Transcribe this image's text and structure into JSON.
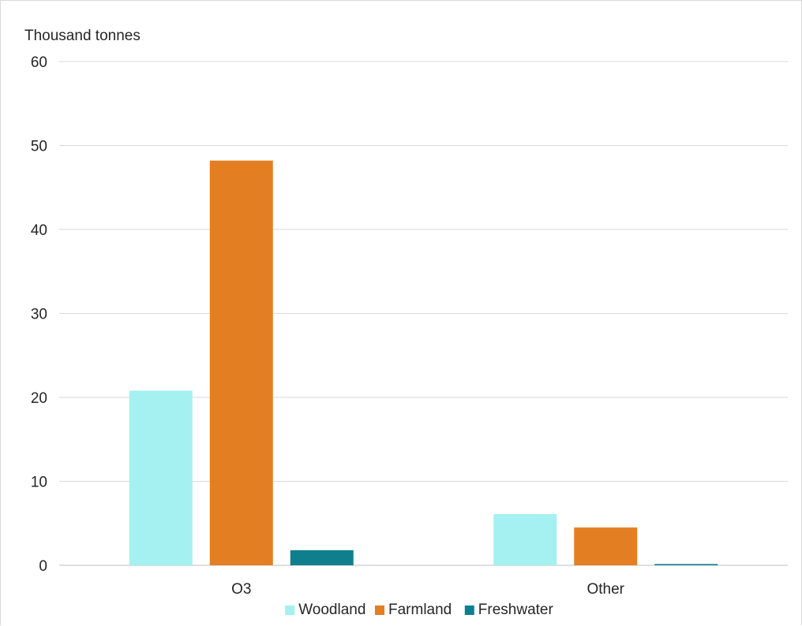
{
  "chart_data": {
    "type": "bar",
    "ylabel": "Thousand tonnes",
    "categories": [
      "O3",
      "Other"
    ],
    "series": [
      {
        "name": "Woodland",
        "values": [
          20.8,
          6.1
        ],
        "color": "#a5f0f0"
      },
      {
        "name": "Farmland",
        "values": [
          48.2,
          4.5
        ],
        "color": "#e37f22"
      },
      {
        "name": "Freshwater",
        "values": [
          1.8,
          0.15
        ],
        "color": "#0f7f8e"
      }
    ],
    "ylim": [
      0,
      60
    ],
    "yticks": [
      0,
      10,
      20,
      30,
      40,
      50,
      60
    ],
    "grid": true,
    "legend_position": "bottom"
  }
}
